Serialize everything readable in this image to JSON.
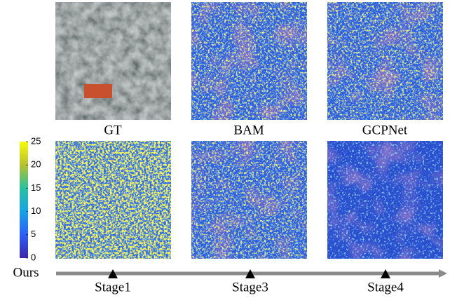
{
  "panels": [
    {
      "label": "GT"
    },
    {
      "label": "BAM"
    },
    {
      "label": "GCPNet"
    }
  ],
  "colorbar": {
    "lim": [
      0,
      25
    ],
    "ticks": [
      0,
      5,
      10,
      15,
      20,
      25
    ]
  },
  "timeline": {
    "label": "Ours",
    "stages": [
      "Stage1",
      "Stage3",
      "Stage4"
    ]
  }
}
